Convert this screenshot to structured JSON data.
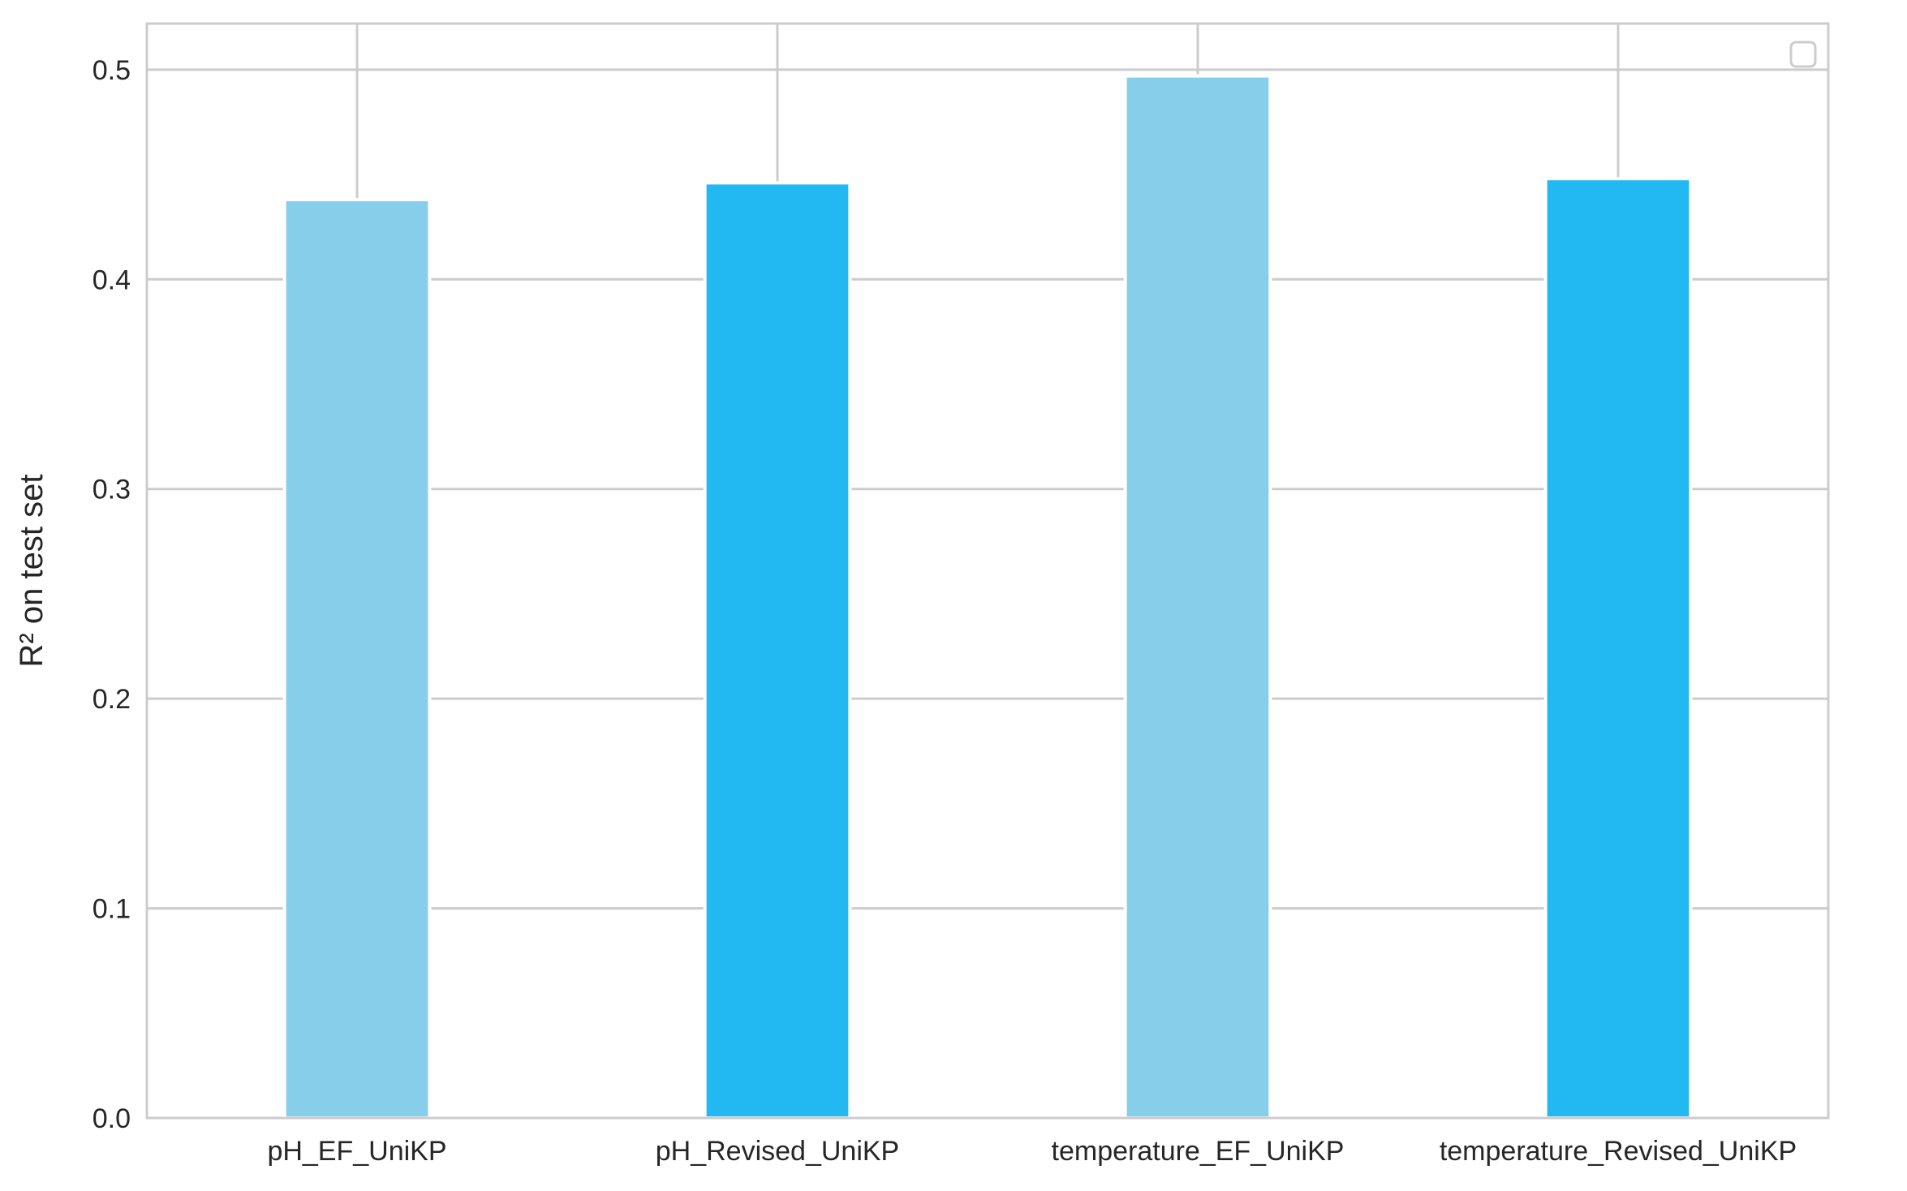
{
  "chart_data": {
    "type": "bar",
    "categories": [
      "pH_EF_UniKP",
      "pH_Revised_UniKP",
      "temperature_EF_UniKP",
      "temperature_Revised_UniKP"
    ],
    "values": [
      0.438,
      0.446,
      0.497,
      0.448
    ],
    "colors": [
      "#87ceeb",
      "#22b8f2",
      "#87ceeb",
      "#22b8f2"
    ],
    "title": "",
    "xlabel": "",
    "ylabel": "R² on test set",
    "ylim": [
      0,
      0.522
    ],
    "yticks": [
      0.0,
      0.1,
      0.2,
      0.3,
      0.4,
      0.5
    ],
    "ytick_labels": [
      "0.0",
      "0.1",
      "0.2",
      "0.3",
      "0.4",
      "0.5"
    ],
    "grid": true,
    "legend": {
      "placement": "top-right",
      "entries": []
    }
  }
}
